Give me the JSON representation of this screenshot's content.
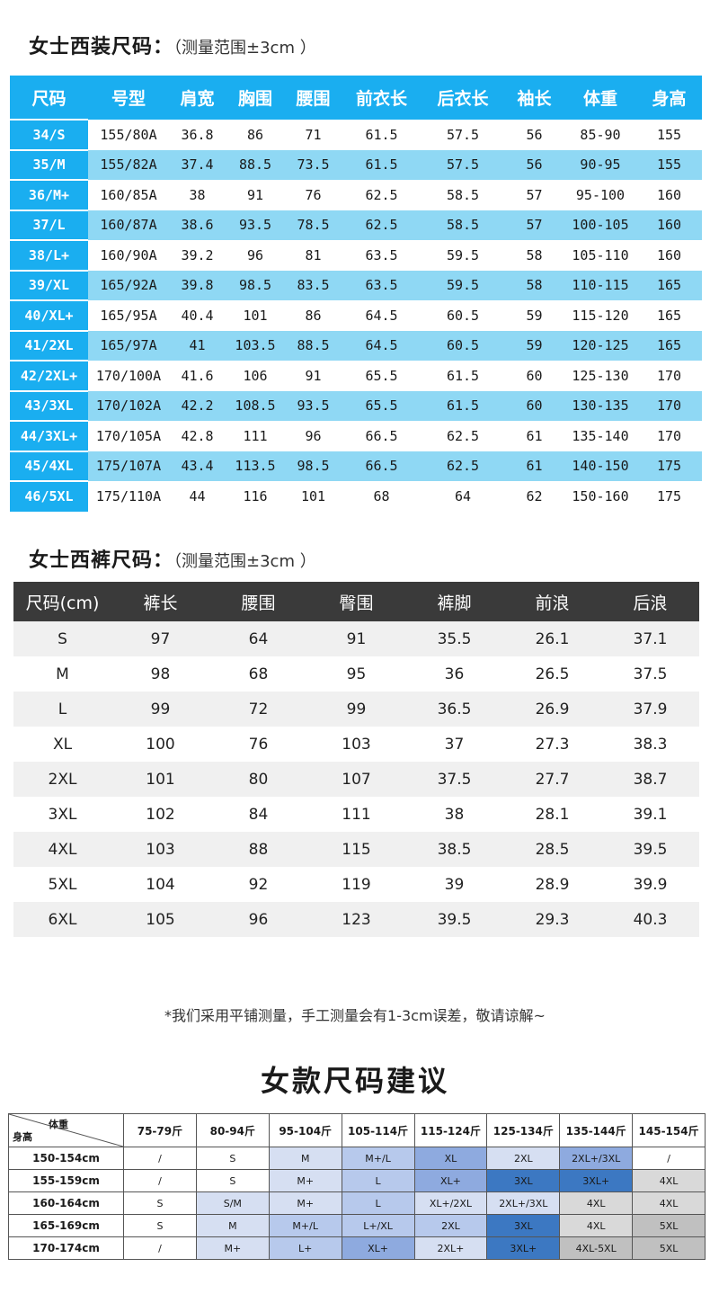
{
  "jacket": {
    "title": "女士西装尺码：",
    "note": "（测量范围±3cm ）",
    "headers": [
      "尺码",
      "号型",
      "肩宽",
      "胸围",
      "腰围",
      "前衣长",
      "后衣长",
      "袖长",
      "体重",
      "身高"
    ],
    "rows": [
      [
        "34/S",
        "155/80A",
        "36.8",
        "86",
        "71",
        "61.5",
        "57.5",
        "56",
        "85-90",
        "155"
      ],
      [
        "35/M",
        "155/82A",
        "37.4",
        "88.5",
        "73.5",
        "61.5",
        "57.5",
        "56",
        "90-95",
        "155"
      ],
      [
        "36/M+",
        "160/85A",
        "38",
        "91",
        "76",
        "62.5",
        "58.5",
        "57",
        "95-100",
        "160"
      ],
      [
        "37/L",
        "160/87A",
        "38.6",
        "93.5",
        "78.5",
        "62.5",
        "58.5",
        "57",
        "100-105",
        "160"
      ],
      [
        "38/L+",
        "160/90A",
        "39.2",
        "96",
        "81",
        "63.5",
        "59.5",
        "58",
        "105-110",
        "160"
      ],
      [
        "39/XL",
        "165/92A",
        "39.8",
        "98.5",
        "83.5",
        "63.5",
        "59.5",
        "58",
        "110-115",
        "165"
      ],
      [
        "40/XL+",
        "165/95A",
        "40.4",
        "101",
        "86",
        "64.5",
        "60.5",
        "59",
        "115-120",
        "165"
      ],
      [
        "41/2XL",
        "165/97A",
        "41",
        "103.5",
        "88.5",
        "64.5",
        "60.5",
        "59",
        "120-125",
        "165"
      ],
      [
        "42/2XL+",
        "170/100A",
        "41.6",
        "106",
        "91",
        "65.5",
        "61.5",
        "60",
        "125-130",
        "170"
      ],
      [
        "43/3XL",
        "170/102A",
        "42.2",
        "108.5",
        "93.5",
        "65.5",
        "61.5",
        "60",
        "130-135",
        "170"
      ],
      [
        "44/3XL+",
        "170/105A",
        "42.8",
        "111",
        "96",
        "66.5",
        "62.5",
        "61",
        "135-140",
        "170"
      ],
      [
        "45/4XL",
        "175/107A",
        "43.4",
        "113.5",
        "98.5",
        "66.5",
        "62.5",
        "61",
        "140-150",
        "175"
      ],
      [
        "46/5XL",
        "175/110A",
        "44",
        "116",
        "101",
        "68",
        "64",
        "62",
        "150-160",
        "175"
      ]
    ]
  },
  "pants": {
    "title": "女士西裤尺码：",
    "note": "（测量范围±3cm ）",
    "headers": [
      "尺码(cm)",
      "裤长",
      "腰围",
      "臀围",
      "裤脚",
      "前浪",
      "后浪"
    ],
    "rows": [
      [
        "S",
        "97",
        "64",
        "91",
        "35.5",
        "26.1",
        "37.1"
      ],
      [
        "M",
        "98",
        "68",
        "95",
        "36",
        "26.5",
        "37.5"
      ],
      [
        "L",
        "99",
        "72",
        "99",
        "36.5",
        "26.9",
        "37.9"
      ],
      [
        "XL",
        "100",
        "76",
        "103",
        "37",
        "27.3",
        "38.3"
      ],
      [
        "2XL",
        "101",
        "80",
        "107",
        "37.5",
        "27.7",
        "38.7"
      ],
      [
        "3XL",
        "102",
        "84",
        "111",
        "38",
        "28.1",
        "39.1"
      ],
      [
        "4XL",
        "103",
        "88",
        "115",
        "38.5",
        "28.5",
        "39.5"
      ],
      [
        "5XL",
        "104",
        "92",
        "119",
        "39",
        "28.9",
        "39.9"
      ],
      [
        "6XL",
        "105",
        "96",
        "123",
        "39.5",
        "29.3",
        "40.3"
      ]
    ]
  },
  "disclaimer": "*我们采用平铺测量，手工测量会有1-3cm误差，敬请谅解~",
  "recommendation": {
    "title": "女款尺码建议",
    "corner_weight": "体重",
    "corner_height": "身高",
    "weights": [
      "75-79斤",
      "80-94斤",
      "95-104斤",
      "105-114斤",
      "115-124斤",
      "125-134斤",
      "135-144斤",
      "145-154斤"
    ],
    "rows": [
      {
        "height": "150-154cm",
        "cells": [
          "/",
          "S",
          "M",
          "M+/L",
          "XL",
          "2XL",
          "2XL+/3XL",
          "/"
        ]
      },
      {
        "height": "155-159cm",
        "cells": [
          "/",
          "S",
          "M+",
          "L",
          "XL+",
          "3XL",
          "3XL+",
          "4XL"
        ]
      },
      {
        "height": "160-164cm",
        "cells": [
          "S",
          "S/M",
          "M+",
          "L",
          "XL+/2XL",
          "2XL+/3XL",
          "4XL",
          "4XL"
        ]
      },
      {
        "height": "165-169cm",
        "cells": [
          "S",
          "M",
          "M+/L",
          "L+/XL",
          "2XL",
          "3XL",
          "4XL",
          "5XL"
        ]
      },
      {
        "height": "170-174cm",
        "cells": [
          "/",
          "M+",
          "L+",
          "XL+",
          "2XL+",
          "3XL+",
          "4XL-5XL",
          "5XL"
        ]
      }
    ],
    "color_map": {
      "/": "#ffffff",
      "S": "#ffffff",
      "S/M": "#d6dff2",
      "M": "#d6dff2",
      "M+": "#d6dff2",
      "M+/L": "#b7c9ec",
      "L": "#b7c9ec",
      "L+": "#b7c9ec",
      "L+/XL": "#b7c9ec",
      "XL": "#8eaadf",
      "XL+": "#8eaadf",
      "XL+/2XL": "#b7c9ec",
      "2XL": "#b7c9ec",
      "2XL+": "#d6dff2",
      "2XL+/3XL": "#8eaadf",
      "3XL": "#3c78c2",
      "3XL+": "#3c78c2",
      "4XL": "#d9d9d9",
      "4XL-5XL": "#c0c0c0",
      "5XL": "#c0c0c0"
    },
    "overrides": {
      "0-5": "#d6dff2",
      "0-6": "#8eaadf",
      "1-6": "#3c78c2",
      "2-4": "#d6dff2",
      "2-5": "#d6dff2",
      "2-7": "#d9d9d9",
      "3-5": "#3c78c2",
      "3-7": "#c0c0c0",
      "4-4": "#d6dff2",
      "4-5": "#3c78c2",
      "1-7": "#d9d9d9",
      "0-1": "#ffffff",
      "1-1": "#ffffff"
    }
  }
}
